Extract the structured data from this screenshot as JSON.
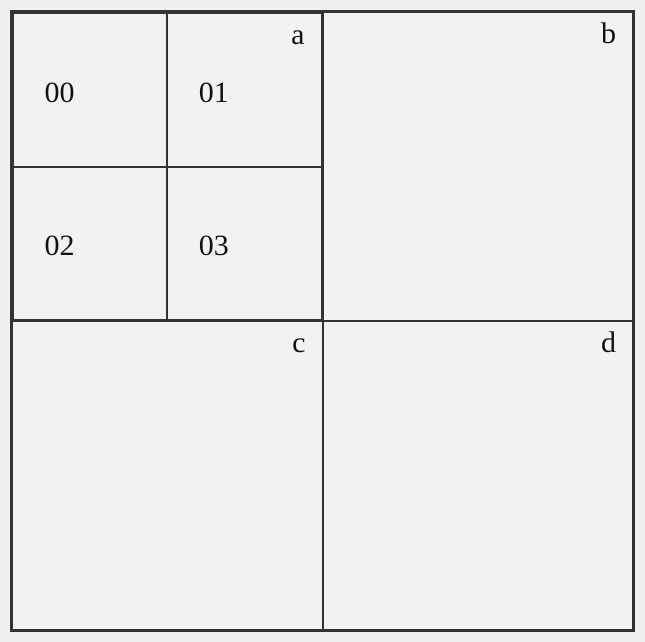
{
  "diagram": {
    "type": "tree",
    "background_color": "#f2f2f2",
    "border_color": "#333333",
    "text_color": "#111111",
    "font_family": "Times New Roman",
    "label_fontsize": 30,
    "outer_width": 625,
    "outer_height": 622,
    "quadrants": {
      "top_left": {
        "corner_label": "a",
        "subcells": {
          "tl": {
            "center_label": "00"
          },
          "tr": {
            "center_label": "01",
            "corner_label": "a"
          },
          "bl": {
            "center_label": "02"
          },
          "br": {
            "center_label": "03"
          }
        }
      },
      "top_right": {
        "corner_label": "b"
      },
      "bottom_left": {
        "corner_label": "c"
      },
      "bottom_right": {
        "corner_label": "d"
      }
    }
  }
}
